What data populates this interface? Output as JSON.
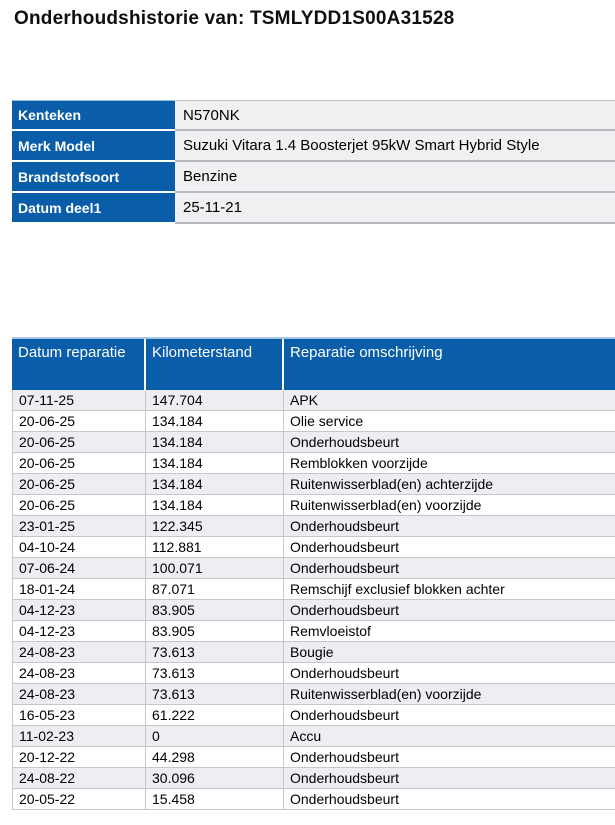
{
  "title": "Onderhoudshistorie van: TSMLYDD1S00A31528",
  "colors": {
    "header_blue": "#0a5da8",
    "stripe_gray": "#ededf2",
    "info_value_bg": "#f0f0f3"
  },
  "vehicle_info": {
    "rows": [
      {
        "label": "Kenteken",
        "value": "N570NK"
      },
      {
        "label": "Merk Model",
        "value": "Suzuki Vitara 1.4 Boosterjet 95kW Smart Hybrid Style"
      },
      {
        "label": "Brandstofsoort",
        "value": "Benzine"
      },
      {
        "label": "Datum deel1",
        "value": "25-11-21"
      }
    ]
  },
  "history": {
    "headers": [
      "Datum reparatie",
      "Kilometerstand",
      "Reparatie omschrijving"
    ],
    "rows": [
      {
        "date": "07-11-25",
        "km": "147.704",
        "description": "APK"
      },
      {
        "date": "20-06-25",
        "km": "134.184",
        "description": "Olie service"
      },
      {
        "date": "20-06-25",
        "km": "134.184",
        "description": "Onderhoudsbeurt"
      },
      {
        "date": "20-06-25",
        "km": "134.184",
        "description": "Remblokken voorzijde"
      },
      {
        "date": "20-06-25",
        "km": "134.184",
        "description": "Ruitenwisserblad(en) achterzijde"
      },
      {
        "date": "20-06-25",
        "km": "134.184",
        "description": "Ruitenwisserblad(en) voorzijde"
      },
      {
        "date": "23-01-25",
        "km": "122.345",
        "description": "Onderhoudsbeurt"
      },
      {
        "date": "04-10-24",
        "km": "112.881",
        "description": "Onderhoudsbeurt"
      },
      {
        "date": "07-06-24",
        "km": "100.071",
        "description": "Onderhoudsbeurt"
      },
      {
        "date": "18-01-24",
        "km": "87.071",
        "description": "Remschijf exclusief blokken achter"
      },
      {
        "date": "04-12-23",
        "km": "83.905",
        "description": "Onderhoudsbeurt"
      },
      {
        "date": "04-12-23",
        "km": "83.905",
        "description": "Remvloeistof"
      },
      {
        "date": "24-08-23",
        "km": "73.613",
        "description": "Bougie"
      },
      {
        "date": "24-08-23",
        "km": "73.613",
        "description": "Onderhoudsbeurt"
      },
      {
        "date": "24-08-23",
        "km": "73.613",
        "description": "Ruitenwisserblad(en) voorzijde"
      },
      {
        "date": "16-05-23",
        "km": "61.222",
        "description": "Onderhoudsbeurt"
      },
      {
        "date": "11-02-23",
        "km": "0",
        "description": "Accu"
      },
      {
        "date": "20-12-22",
        "km": "44.298",
        "description": "Onderhoudsbeurt"
      },
      {
        "date": "24-08-22",
        "km": "30.096",
        "description": "Onderhoudsbeurt"
      },
      {
        "date": "20-05-22",
        "km": "15.458",
        "description": "Onderhoudsbeurt"
      }
    ]
  }
}
